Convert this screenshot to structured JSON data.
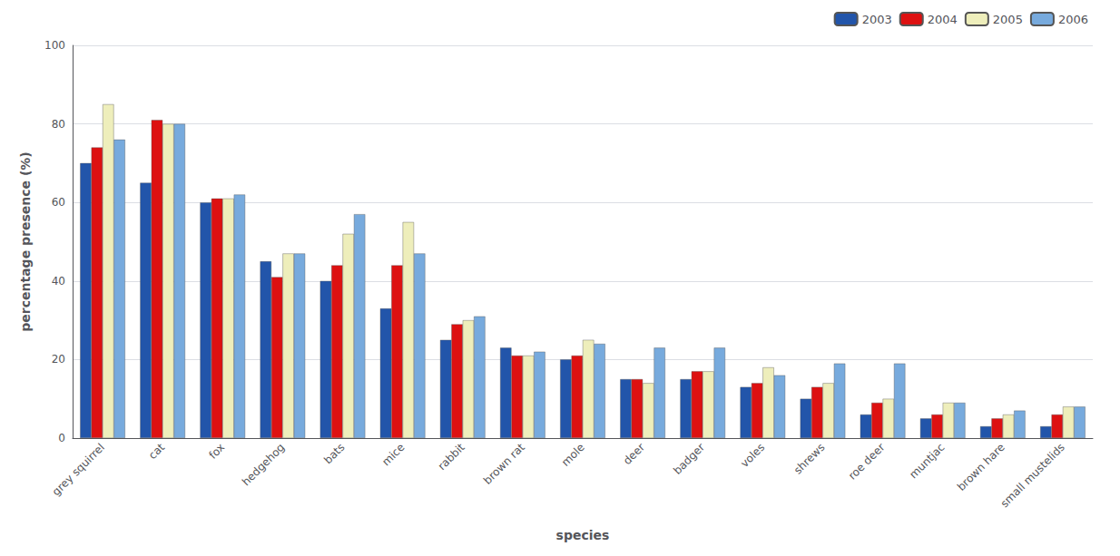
{
  "chart_data": {
    "type": "bar",
    "xlabel": "species",
    "ylabel": "percentage presence (%)",
    "categories": [
      "grey squirrel",
      "cat",
      "fox",
      "hedgehog",
      "bats",
      "mice",
      "rabbit",
      "brown rat",
      "mole",
      "deer",
      "badger",
      "voles",
      "shrews",
      "roe deer",
      "muntjac",
      "brown hare",
      "small mustelids"
    ],
    "series": [
      {
        "name": "2003",
        "color": "#2255AA",
        "values": [
          70,
          65,
          60,
          45,
          40,
          33,
          25,
          23,
          20,
          15,
          15,
          13,
          10,
          6,
          5,
          3,
          3
        ]
      },
      {
        "name": "2004",
        "color": "#DD1111",
        "values": [
          74,
          81,
          61,
          41,
          44,
          44,
          29,
          21,
          21,
          15,
          17,
          14,
          13,
          9,
          6,
          5,
          6
        ]
      },
      {
        "name": "2005",
        "color": "#EEEEBB",
        "values": [
          85,
          80,
          61,
          47,
          52,
          55,
          30,
          21,
          25,
          14,
          17,
          18,
          14,
          10,
          9,
          6,
          8
        ]
      },
      {
        "name": "2006",
        "color": "#77AADD",
        "values": [
          76,
          80,
          62,
          47,
          57,
          47,
          31,
          22,
          24,
          23,
          23,
          16,
          19,
          19,
          9,
          7,
          8
        ]
      }
    ],
    "ylim": [
      0,
      100
    ],
    "yticks": [
      0,
      20,
      40,
      60,
      80,
      100
    ],
    "grid": true,
    "legend": "upper right"
  }
}
